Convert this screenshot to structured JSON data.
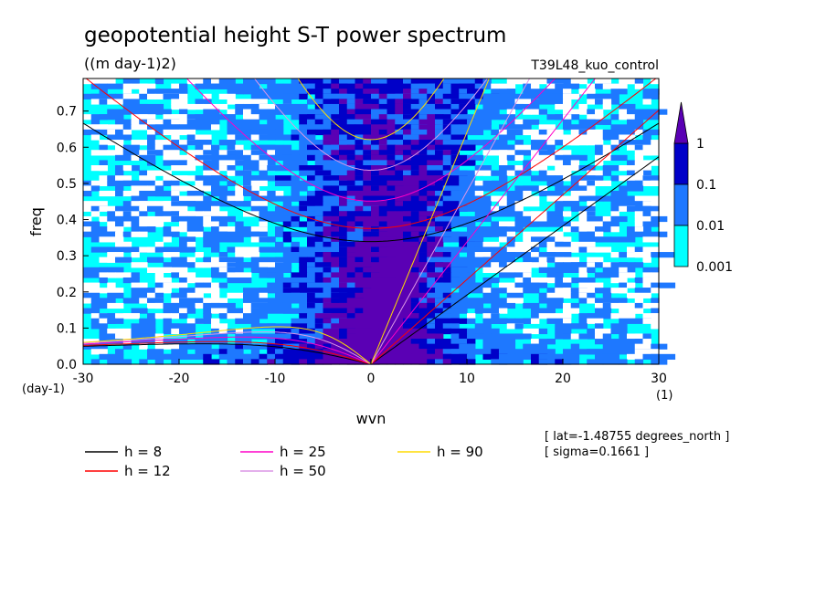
{
  "chart_data": {
    "type": "heatmap",
    "title": "geopotential height S-T power spectrum",
    "units": "((m day-1)2)",
    "run_label": "T39L48_kuo_control",
    "xlabel": "wvn",
    "ylabel": "freq",
    "x_unit_label": "(1)",
    "y_unit_label": "(day-1)",
    "xlim": [
      -30,
      30
    ],
    "ylim": [
      0,
      0.79
    ],
    "x_ticks": [
      "-30",
      "-20",
      "-10",
      "0",
      "10",
      "20",
      "30"
    ],
    "y_ticks": [
      "0.0",
      "0.1",
      "0.2",
      "0.3",
      "0.4",
      "0.5",
      "0.6",
      "0.7"
    ],
    "colorbar": {
      "levels": [
        "0.001",
        "0.01",
        "0.1",
        "1"
      ],
      "colors": [
        "#00ffff",
        "#1e78ff",
        "#0000c8",
        "#5a00b4"
      ]
    },
    "dispersion_curves": [
      {
        "label": "h =  8",
        "h": 8,
        "color": "#000000"
      },
      {
        "label": "h = 12",
        "h": 12,
        "color": "#ff0000"
      },
      {
        "label": "h = 25",
        "h": 25,
        "color": "#ff00c8"
      },
      {
        "label": "h = 50",
        "h": 50,
        "color": "#dc96e6"
      },
      {
        "label": "h = 90",
        "h": 90,
        "color": "#ffdc00"
      }
    ],
    "annotations": [
      "[ lat=-1.48755 degrees_north ]",
      "[ sigma=0.1661 ]"
    ]
  }
}
